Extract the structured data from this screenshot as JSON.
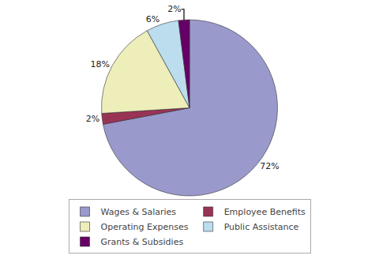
{
  "chart_data": {
    "type": "pie",
    "categories": [
      "Wages & Salaries",
      "Employee Benefits",
      "Operating Expenses",
      "Public Assistance",
      "Grants & Subsidies"
    ],
    "values": [
      72,
      2,
      18,
      6,
      2
    ],
    "value_labels": [
      "72%",
      "2%",
      "18%",
      "6%",
      "2%"
    ],
    "colors": [
      "#9999CC",
      "#993355",
      "#EEEEBB",
      "#BBDDEE",
      "#660066"
    ],
    "data_labels": true,
    "legend": "bottom"
  }
}
